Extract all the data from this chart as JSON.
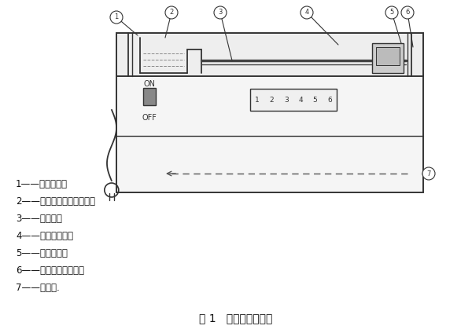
{
  "title": "图 1   耐洗刷性试验仪",
  "title_fontsize": 10,
  "bg_color": "#ffffff",
  "labels": [
    "1——电源开关；",
    "2——滴加洗刷介质的容器；",
    "3——滑动架；",
    "4——刷子及夹具；",
    "5——试验台板；",
    "6——往复次数显示器；",
    "7——电动机."
  ],
  "label_fontsize": 8.5,
  "line_color": "#333333",
  "callout_nums": [
    "1",
    "2",
    "3",
    "4",
    "5",
    "6",
    "7"
  ],
  "display_nums": [
    "1",
    "2",
    "3",
    "4",
    "5",
    "6"
  ]
}
